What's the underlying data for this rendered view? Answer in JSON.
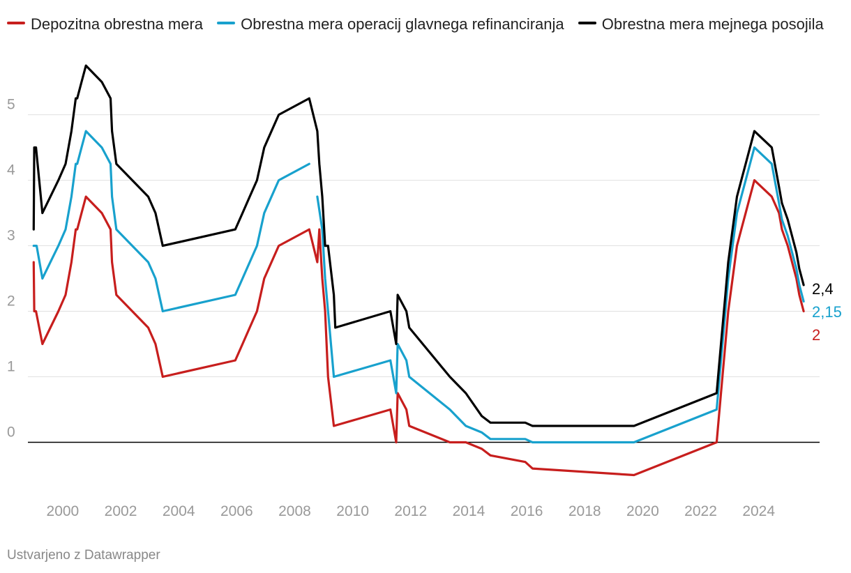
{
  "chart_data": {
    "type": "line",
    "title": "",
    "xlabel": "",
    "ylabel": "",
    "x_range": [
      1998.8,
      2026.1
    ],
    "ylim": [
      -0.75,
      5.9
    ],
    "y_ticks": [
      0,
      1,
      2,
      3,
      4,
      5
    ],
    "x_ticks": [
      "2000",
      "2002",
      "2004",
      "2006",
      "2008",
      "2010",
      "2012",
      "2014",
      "2016",
      "2018",
      "2020",
      "2022",
      "2024"
    ],
    "x_tick_values": [
      2000,
      2002,
      2004,
      2006,
      2008,
      2010,
      2012,
      2014,
      2016,
      2018,
      2020,
      2022,
      2024
    ],
    "grid": true,
    "legend_placement": "top-left",
    "series": [
      {
        "name": "Depozitna obrestna mera",
        "color": "#c71e1d",
        "end_label": "2",
        "points": [
          [
            1999.0,
            2.75
          ],
          [
            1999.02,
            2.0
          ],
          [
            1999.05,
            2.0
          ],
          [
            1999.08,
            2.0
          ],
          [
            1999.3,
            1.5
          ],
          [
            1999.85,
            2.0
          ],
          [
            2000.1,
            2.25
          ],
          [
            2000.3,
            2.75
          ],
          [
            2000.45,
            3.25
          ],
          [
            2000.5,
            3.25
          ],
          [
            2000.65,
            3.5
          ],
          [
            2000.8,
            3.75
          ],
          [
            2001.35,
            3.5
          ],
          [
            2001.65,
            3.25
          ],
          [
            2001.7,
            2.75
          ],
          [
            2001.85,
            2.25
          ],
          [
            2002.95,
            1.75
          ],
          [
            2003.2,
            1.5
          ],
          [
            2003.45,
            1.0
          ],
          [
            2005.95,
            1.25
          ],
          [
            2006.2,
            1.5
          ],
          [
            2006.45,
            1.75
          ],
          [
            2006.7,
            2.0
          ],
          [
            2006.95,
            2.5
          ],
          [
            2007.45,
            3.0
          ],
          [
            2008.5,
            3.25
          ],
          [
            2008.78,
            2.75
          ],
          [
            2008.85,
            3.25
          ],
          [
            2008.95,
            2.5
          ],
          [
            2009.05,
            2.0
          ],
          [
            2009.15,
            1.0
          ],
          [
            2009.35,
            0.25
          ],
          [
            2011.3,
            0.5
          ],
          [
            2011.5,
            0.0
          ],
          [
            2011.55,
            0.75
          ],
          [
            2011.85,
            0.5
          ],
          [
            2011.95,
            0.25
          ],
          [
            2013.35,
            0.0
          ],
          [
            2013.9,
            0.0
          ],
          [
            2014.45,
            -0.1
          ],
          [
            2014.75,
            -0.2
          ],
          [
            2015.95,
            -0.3
          ],
          [
            2016.2,
            -0.4
          ],
          [
            2019.7,
            -0.5
          ],
          [
            2022.55,
            0.0
          ],
          [
            2022.7,
            0.75
          ],
          [
            2022.85,
            1.5
          ],
          [
            2022.95,
            2.0
          ],
          [
            2023.25,
            3.0
          ],
          [
            2023.4,
            3.25
          ],
          [
            2023.55,
            3.5
          ],
          [
            2023.7,
            3.75
          ],
          [
            2023.85,
            4.0
          ],
          [
            2024.45,
            3.75
          ],
          [
            2024.7,
            3.5
          ],
          [
            2024.8,
            3.25
          ],
          [
            2025.0,
            3.0
          ],
          [
            2025.15,
            2.75
          ],
          [
            2025.3,
            2.5
          ],
          [
            2025.4,
            2.25
          ],
          [
            2025.55,
            2.0
          ]
        ]
      },
      {
        "name": "Obrestna mera operacij glavnega refinanciranja",
        "color": "#18a1cd",
        "end_label": "2,15",
        "segments": [
          [
            [
              1999.0,
              3.0
            ],
            [
              1999.1,
              3.0
            ],
            [
              1999.3,
              2.5
            ],
            [
              1999.85,
              3.0
            ],
            [
              2000.1,
              3.25
            ],
            [
              2000.3,
              3.75
            ],
            [
              2000.45,
              4.25
            ],
            [
              2000.5,
              4.25
            ],
            [
              2000.65,
              4.5
            ],
            [
              2000.8,
              4.75
            ],
            [
              2001.35,
              4.5
            ],
            [
              2001.65,
              4.25
            ],
            [
              2001.7,
              3.75
            ],
            [
              2001.85,
              3.25
            ],
            [
              2002.95,
              2.75
            ],
            [
              2003.2,
              2.5
            ],
            [
              2003.45,
              2.0
            ],
            [
              2005.95,
              2.25
            ],
            [
              2006.2,
              2.5
            ],
            [
              2006.45,
              2.75
            ],
            [
              2006.7,
              3.0
            ],
            [
              2006.95,
              3.5
            ],
            [
              2007.45,
              4.0
            ],
            [
              2008.5,
              4.25
            ]
          ],
          [
            [
              2008.78,
              3.75
            ],
            [
              2008.95,
              3.25
            ],
            [
              2009.05,
              2.5
            ],
            [
              2009.15,
              2.0
            ],
            [
              2009.35,
              1.0
            ],
            [
              2011.3,
              1.25
            ],
            [
              2011.5,
              0.75
            ],
            [
              2011.55,
              1.5
            ],
            [
              2011.85,
              1.25
            ],
            [
              2011.95,
              1.0
            ],
            [
              2013.35,
              0.5
            ],
            [
              2013.9,
              0.25
            ],
            [
              2014.45,
              0.15
            ],
            [
              2014.75,
              0.05
            ],
            [
              2015.95,
              0.05
            ],
            [
              2016.2,
              0.0
            ],
            [
              2019.7,
              0.0
            ],
            [
              2022.55,
              0.5
            ],
            [
              2022.7,
              1.25
            ],
            [
              2022.85,
              2.0
            ],
            [
              2022.95,
              2.5
            ],
            [
              2023.25,
              3.5
            ],
            [
              2023.4,
              3.75
            ],
            [
              2023.55,
              4.0
            ],
            [
              2023.7,
              4.25
            ],
            [
              2023.85,
              4.5
            ],
            [
              2024.45,
              4.25
            ],
            [
              2024.7,
              3.65
            ],
            [
              2024.8,
              3.4
            ],
            [
              2025.0,
              3.15
            ],
            [
              2025.15,
              2.9
            ],
            [
              2025.3,
              2.65
            ],
            [
              2025.4,
              2.4
            ],
            [
              2025.55,
              2.15
            ]
          ]
        ]
      },
      {
        "name": "Obrestna mera mejnega posojila",
        "color": "#000000",
        "end_label": "2,4",
        "points": [
          [
            1999.0,
            3.25
          ],
          [
            1999.02,
            4.5
          ],
          [
            1999.05,
            4.5
          ],
          [
            1999.08,
            4.5
          ],
          [
            1999.3,
            3.5
          ],
          [
            1999.85,
            4.0
          ],
          [
            2000.1,
            4.25
          ],
          [
            2000.3,
            4.75
          ],
          [
            2000.45,
            5.25
          ],
          [
            2000.5,
            5.25
          ],
          [
            2000.65,
            5.5
          ],
          [
            2000.8,
            5.75
          ],
          [
            2001.35,
            5.5
          ],
          [
            2001.65,
            5.25
          ],
          [
            2001.7,
            4.75
          ],
          [
            2001.85,
            4.25
          ],
          [
            2002.95,
            3.75
          ],
          [
            2003.2,
            3.5
          ],
          [
            2003.45,
            3.0
          ],
          [
            2005.95,
            3.25
          ],
          [
            2006.2,
            3.5
          ],
          [
            2006.45,
            3.75
          ],
          [
            2006.7,
            4.0
          ],
          [
            2006.95,
            4.5
          ],
          [
            2007.45,
            5.0
          ],
          [
            2008.5,
            5.25
          ],
          [
            2008.78,
            4.75
          ],
          [
            2008.85,
            4.25
          ],
          [
            2008.95,
            3.75
          ],
          [
            2009.05,
            3.0
          ],
          [
            2009.15,
            3.0
          ],
          [
            2009.35,
            2.25
          ],
          [
            2009.4,
            1.75
          ],
          [
            2011.3,
            2.0
          ],
          [
            2011.5,
            1.5
          ],
          [
            2011.55,
            2.25
          ],
          [
            2011.85,
            2.0
          ],
          [
            2011.95,
            1.75
          ],
          [
            2013.35,
            1.0
          ],
          [
            2013.9,
            0.75
          ],
          [
            2014.45,
            0.4
          ],
          [
            2014.75,
            0.3
          ],
          [
            2015.95,
            0.3
          ],
          [
            2016.2,
            0.25
          ],
          [
            2019.7,
            0.25
          ],
          [
            2022.55,
            0.75
          ],
          [
            2022.7,
            1.5
          ],
          [
            2022.85,
            2.25
          ],
          [
            2022.95,
            2.75
          ],
          [
            2023.25,
            3.75
          ],
          [
            2023.4,
            4.0
          ],
          [
            2023.55,
            4.25
          ],
          [
            2023.7,
            4.5
          ],
          [
            2023.85,
            4.75
          ],
          [
            2024.45,
            4.5
          ],
          [
            2024.7,
            3.9
          ],
          [
            2024.8,
            3.65
          ],
          [
            2025.0,
            3.4
          ],
          [
            2025.15,
            3.15
          ],
          [
            2025.3,
            2.9
          ],
          [
            2025.4,
            2.65
          ],
          [
            2025.55,
            2.4
          ]
        ]
      }
    ]
  },
  "credit": "Ustvarjeno z Datawrapper"
}
